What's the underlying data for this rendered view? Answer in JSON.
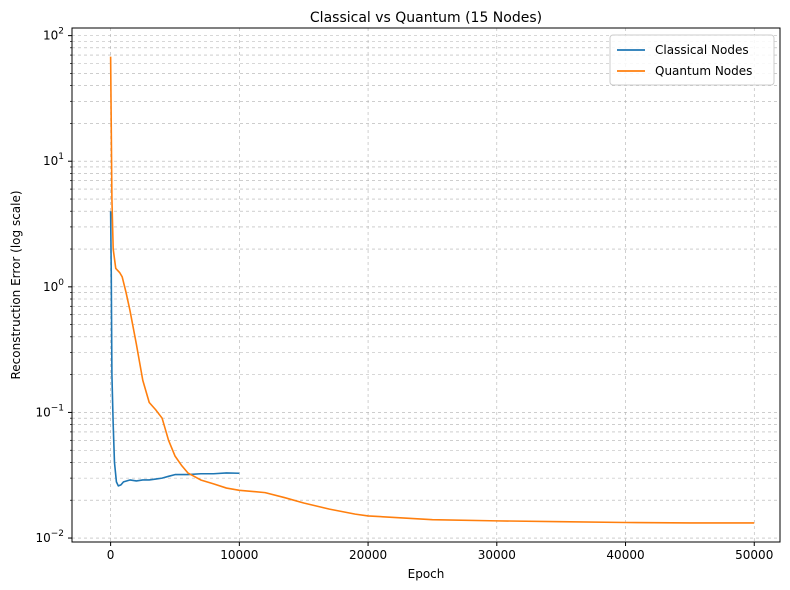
{
  "chart_data": {
    "type": "line",
    "title": "Classical vs Quantum (15 Nodes)",
    "xlabel": "Epoch",
    "ylabel": "Reconstruction Error (log scale)",
    "xlim": [
      -3000,
      52000
    ],
    "ylim": [
      0.0093,
      115
    ],
    "yscale": "log",
    "grid": true,
    "legend_position": "top-right",
    "xticks": [
      0,
      10000,
      20000,
      30000,
      40000,
      50000
    ],
    "xtick_labels": [
      "0",
      "10000",
      "20000",
      "30000",
      "40000",
      "50000"
    ],
    "yticks": [
      0.01,
      0.1,
      1,
      10,
      100
    ],
    "ytick_labels": [
      {
        "base": "10",
        "exp": "−2"
      },
      {
        "base": "10",
        "exp": "−1"
      },
      {
        "base": "10",
        "exp": "0"
      },
      {
        "base": "10",
        "exp": "1"
      },
      {
        "base": "10",
        "exp": "2"
      }
    ],
    "series": [
      {
        "name": "Classical Nodes",
        "color": "#1f77b4",
        "points": [
          [
            0,
            4.0
          ],
          [
            50,
            1.3
          ],
          [
            100,
            0.2
          ],
          [
            200,
            0.08
          ],
          [
            300,
            0.04
          ],
          [
            450,
            0.028
          ],
          [
            600,
            0.026
          ],
          [
            800,
            0.0265
          ],
          [
            1000,
            0.028
          ],
          [
            1500,
            0.029
          ],
          [
            2000,
            0.0285
          ],
          [
            2500,
            0.029
          ],
          [
            3000,
            0.029
          ],
          [
            3500,
            0.0295
          ],
          [
            4000,
            0.03
          ],
          [
            4500,
            0.031
          ],
          [
            5000,
            0.032
          ],
          [
            6000,
            0.032
          ],
          [
            7000,
            0.0325
          ],
          [
            8000,
            0.0325
          ],
          [
            9000,
            0.033
          ],
          [
            10000,
            0.0328
          ]
        ]
      },
      {
        "name": "Quantum Nodes",
        "color": "#ff7f0e",
        "points": [
          [
            0,
            68
          ],
          [
            100,
            5
          ],
          [
            200,
            2.0
          ],
          [
            400,
            1.4
          ],
          [
            700,
            1.3
          ],
          [
            900,
            1.2
          ],
          [
            1200,
            0.9
          ],
          [
            1500,
            0.65
          ],
          [
            2000,
            0.35
          ],
          [
            2500,
            0.18
          ],
          [
            3000,
            0.12
          ],
          [
            3500,
            0.105
          ],
          [
            4000,
            0.09
          ],
          [
            4500,
            0.06
          ],
          [
            5000,
            0.045
          ],
          [
            5500,
            0.038
          ],
          [
            6000,
            0.033
          ],
          [
            7000,
            0.029
          ],
          [
            8000,
            0.027
          ],
          [
            9000,
            0.025
          ],
          [
            10000,
            0.024
          ],
          [
            12000,
            0.023
          ],
          [
            13500,
            0.021
          ],
          [
            15000,
            0.019
          ],
          [
            17000,
            0.017
          ],
          [
            19000,
            0.0155
          ],
          [
            20000,
            0.015
          ],
          [
            22500,
            0.0145
          ],
          [
            25000,
            0.014
          ],
          [
            30000,
            0.0137
          ],
          [
            35000,
            0.0135
          ],
          [
            40000,
            0.0133
          ],
          [
            45000,
            0.0132
          ],
          [
            50000,
            0.0132
          ]
        ]
      }
    ]
  }
}
